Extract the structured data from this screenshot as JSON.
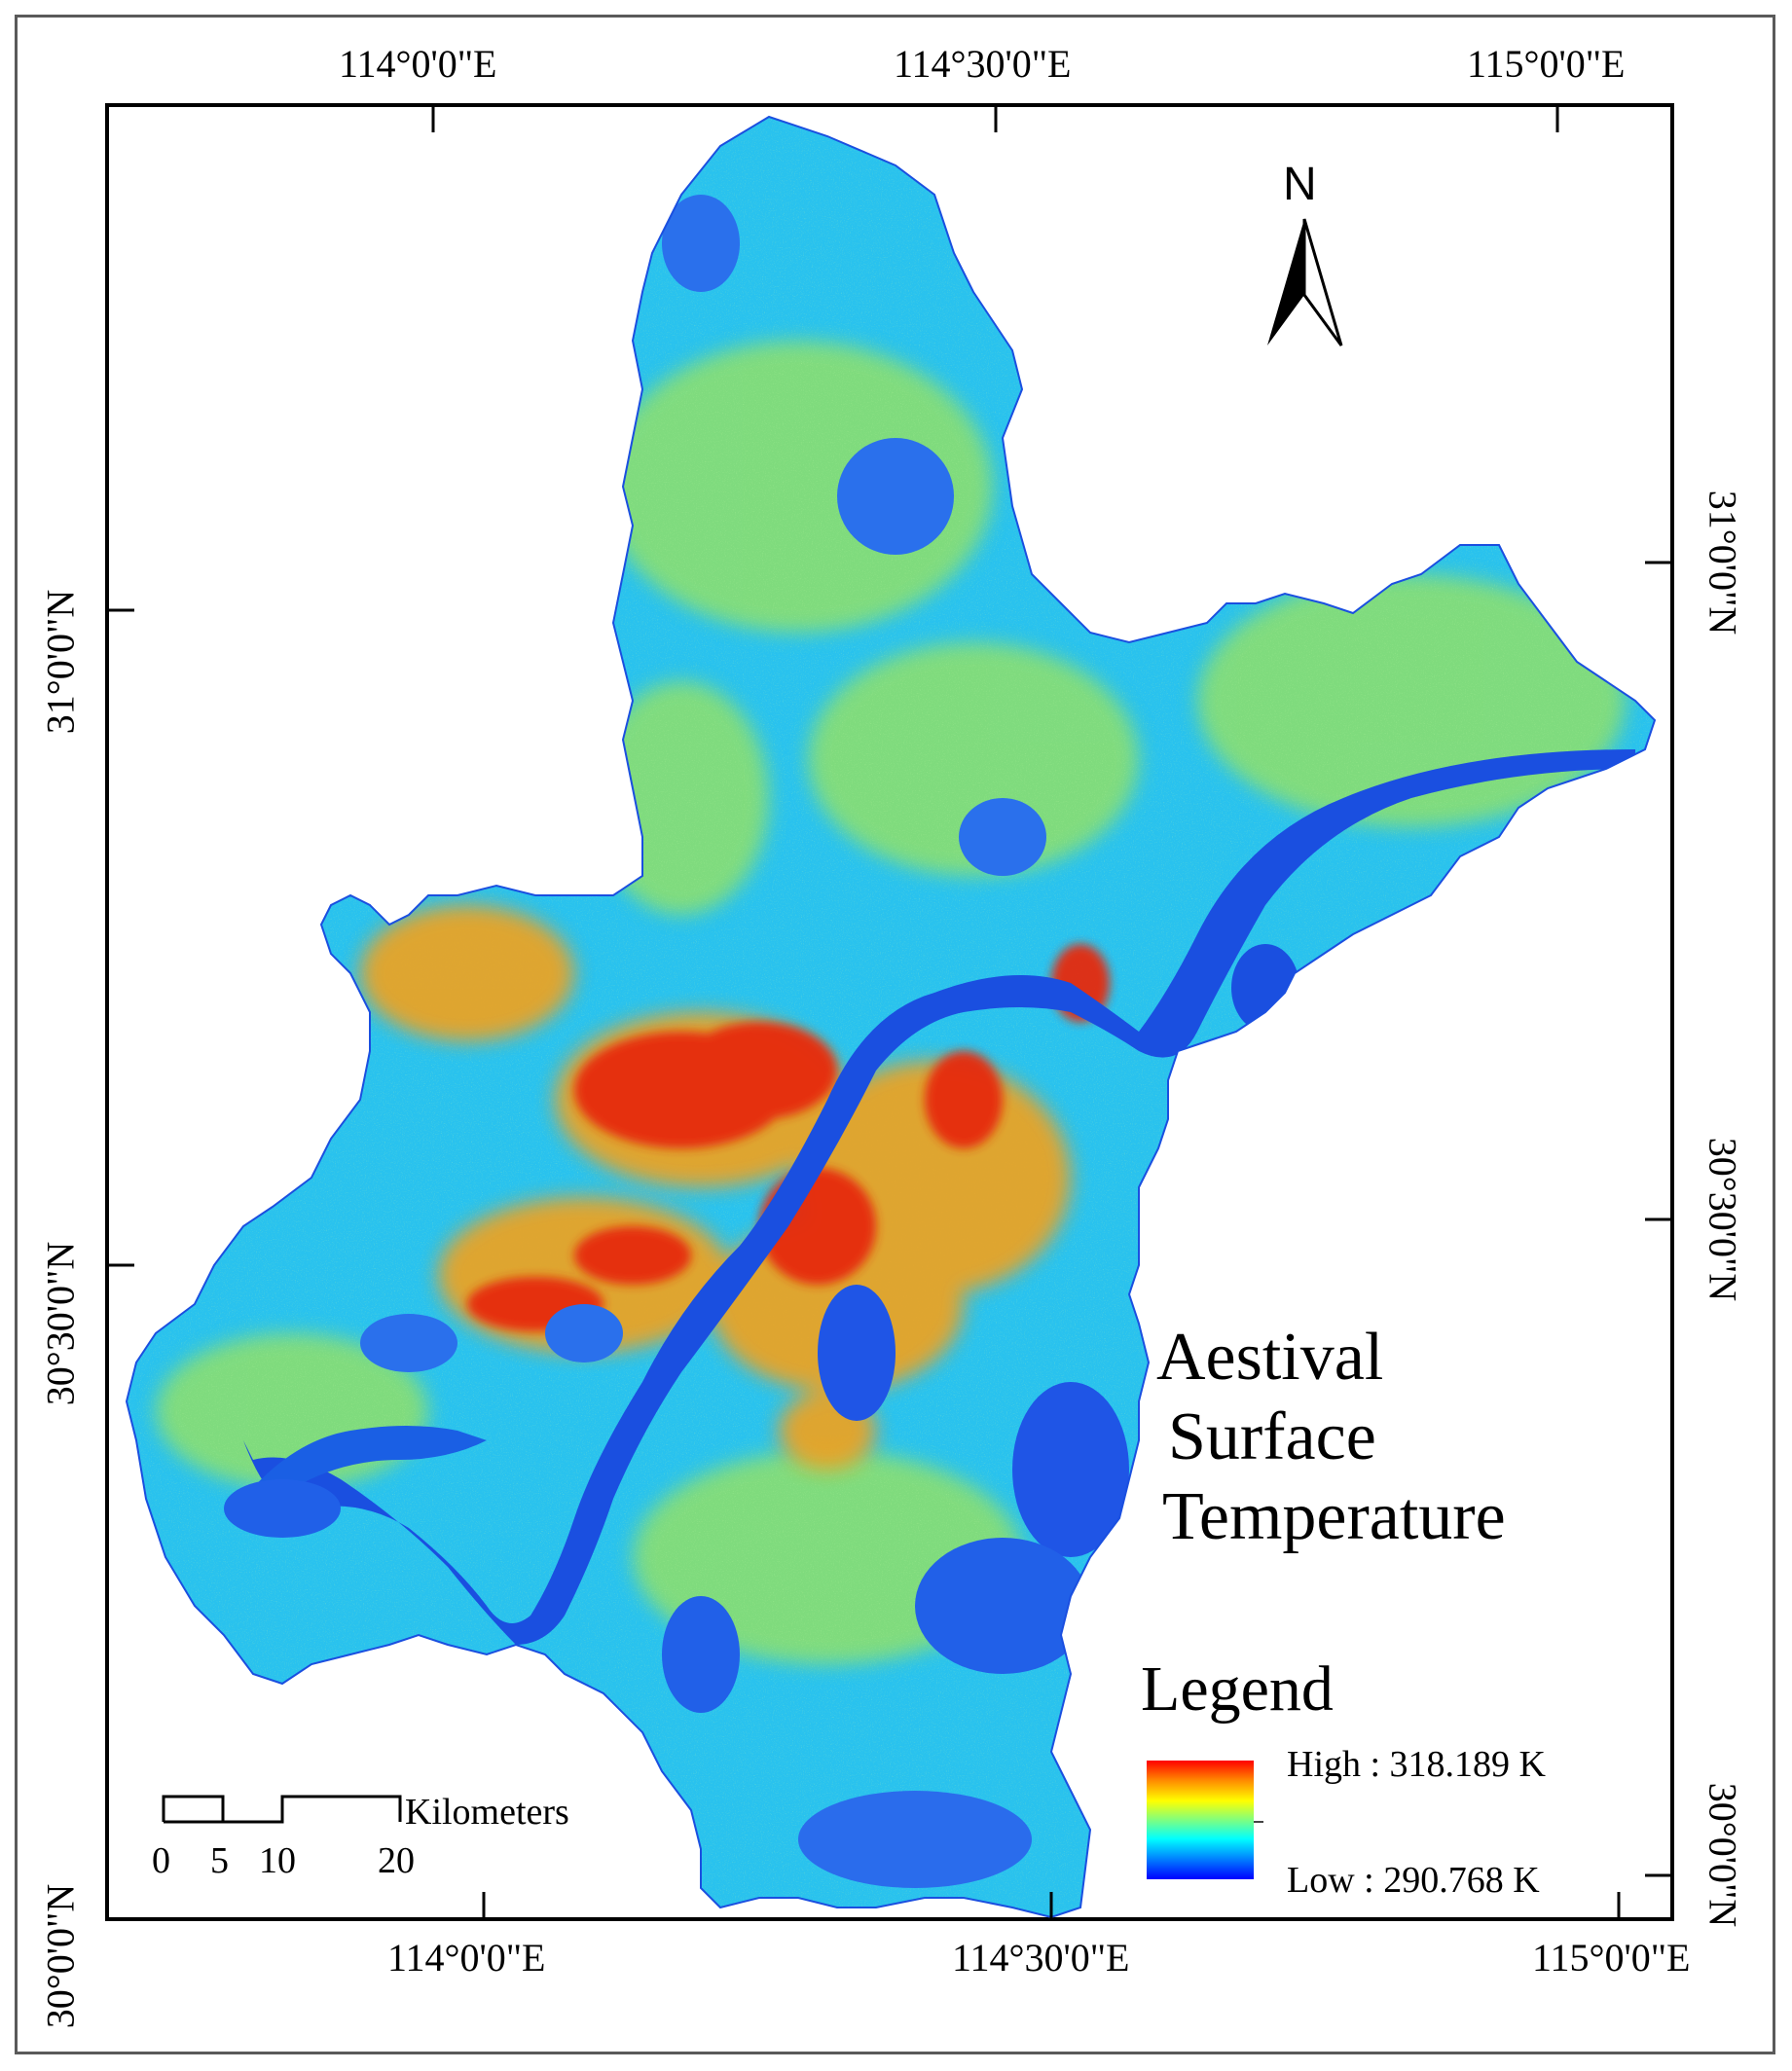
{
  "title": {
    "line1": "Aestival",
    "line2": "Surface",
    "line3": "Temperature"
  },
  "graticule": {
    "top_labels": [
      "114°0'0\"E",
      "114°30'0\"E",
      "115°0'0\"E"
    ],
    "bottom_labels": [
      "114°0'0\"E",
      "114°30'0\"E",
      "115°0'0\"E"
    ],
    "left_labels": [
      "31°0'0\"N",
      "30°30'0\"N",
      "30°0'0\"N"
    ],
    "right_labels": [
      "31°0'0\"N",
      "30°30'0\"N",
      "30°0'0\"N"
    ]
  },
  "north_arrow": {
    "label": "N"
  },
  "legend": {
    "title": "Legend",
    "high_label": "High : 318.189 K",
    "low_label": "Low : 290.768 K",
    "high_value": 318.189,
    "low_value": 290.768,
    "unit": "K",
    "ramp_colors": [
      "#ff0000",
      "#ff8c00",
      "#ffff00",
      "#7fff7f",
      "#00ffff",
      "#0080ff",
      "#0000ff"
    ]
  },
  "scale_bar": {
    "unit_label": "Kilometers",
    "ticks": [
      "0",
      "5",
      "10",
      "20"
    ]
  },
  "colors": {
    "background_land": "#29c2ee",
    "water": "#1a4fe0",
    "hot": "#e62a10",
    "warm": "#f2a21a",
    "mild": "#8fe06a"
  }
}
